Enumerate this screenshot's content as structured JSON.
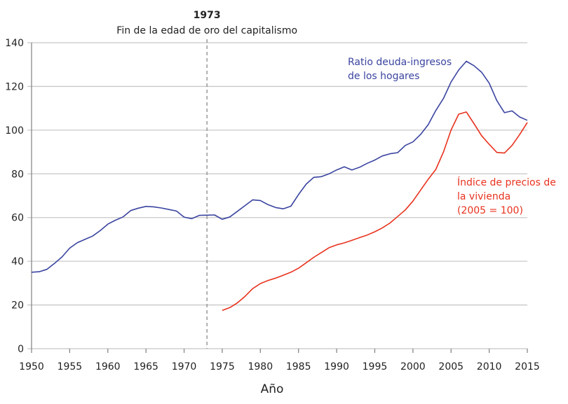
{
  "chart_data": {
    "type": "line",
    "title": "",
    "xlabel": "Año",
    "ylabel": "",
    "xlim": [
      1950,
      2015
    ],
    "ylim": [
      0,
      140
    ],
    "grid": true,
    "x_ticks": [
      "1950",
      "1955",
      "1960",
      "1965",
      "1970",
      "1975",
      "1980",
      "1985",
      "1990",
      "1995",
      "2000",
      "2005",
      "2010",
      "2015"
    ],
    "y_ticks": [
      "0",
      "20",
      "40",
      "60",
      "80",
      "100",
      "120",
      "140"
    ],
    "annotations": {
      "event_year": 1973,
      "event_year_label": "1973",
      "event_text": "Fin de la edad de oro del capitalismo"
    },
    "series": [
      {
        "name": "Ratio deuda-ingresos de los hogares",
        "label_lines": [
          "Ratio deuda-ingresos",
          "de los hogares"
        ],
        "color": "#3a44a0",
        "x": [
          1950,
          1951,
          1952,
          1953,
          1954,
          1955,
          1956,
          1957,
          1958,
          1959,
          1960,
          1961,
          1962,
          1963,
          1964,
          1965,
          1966,
          1967,
          1968,
          1969,
          1970,
          1971,
          1972,
          1973,
          1974,
          1975,
          1976,
          1977,
          1978,
          1979,
          1980,
          1981,
          1982,
          1983,
          1984,
          1985,
          1986,
          1987,
          1988,
          1989,
          1990,
          1991,
          1992,
          1993,
          1994,
          1995,
          1996,
          1997,
          1998,
          1999,
          2000,
          2001,
          2002,
          2003,
          2004,
          2005,
          2006,
          2007,
          2008,
          2009,
          2010,
          2011,
          2012,
          2013,
          2014,
          2015
        ],
        "values": [
          35,
          35.2,
          36.3,
          39,
          42,
          46,
          48.5,
          50,
          51.5,
          54,
          57,
          58.8,
          60.3,
          63.2,
          64.3,
          65.1,
          64.9,
          64.4,
          63.7,
          63,
          60.2,
          59.5,
          61,
          61.1,
          61.2,
          59.2,
          60.3,
          62.9,
          65.5,
          68.1,
          67.8,
          65.9,
          64.6,
          64,
          65.2,
          70.5,
          75.3,
          78.4,
          78.7,
          80,
          81.8,
          83.2,
          81.8,
          83,
          84.8,
          86.3,
          88.2,
          89.2,
          89.7,
          93,
          94.6,
          98,
          102.5,
          109,
          114.5,
          122,
          127.5,
          131.5,
          129.5,
          126.5,
          121.5,
          113.5,
          108,
          108.8,
          106,
          104.5
        ]
      },
      {
        "name": "Índice de precios de la vivienda (2005 = 100)",
        "label_lines": [
          "Índice de precios de",
          "la vivienda",
          "(2005 = 100)"
        ],
        "color": "#e8321e",
        "x": [
          1975,
          1976,
          1977,
          1978,
          1979,
          1980,
          1981,
          1982,
          1983,
          1984,
          1985,
          1986,
          1987,
          1988,
          1989,
          1990,
          1991,
          1992,
          1993,
          1994,
          1995,
          1996,
          1997,
          1998,
          1999,
          2000,
          2001,
          2002,
          2003,
          2004,
          2005,
          2006,
          2007,
          2008,
          2009,
          2010,
          2011,
          2012,
          2013,
          2014,
          2015
        ],
        "values": [
          17.5,
          18.8,
          21,
          24,
          27.5,
          29.8,
          31.2,
          32.3,
          33.6,
          35,
          36.8,
          39.3,
          41.8,
          44,
          46.2,
          47.5,
          48.4,
          49.6,
          50.8,
          52,
          53.5,
          55.3,
          57.5,
          60.5,
          63.5,
          67.5,
          72.5,
          77.5,
          82,
          90,
          100,
          107.3,
          108.3,
          103,
          97.5,
          93.5,
          89.8,
          89.5,
          93,
          98,
          103.5
        ]
      }
    ]
  }
}
